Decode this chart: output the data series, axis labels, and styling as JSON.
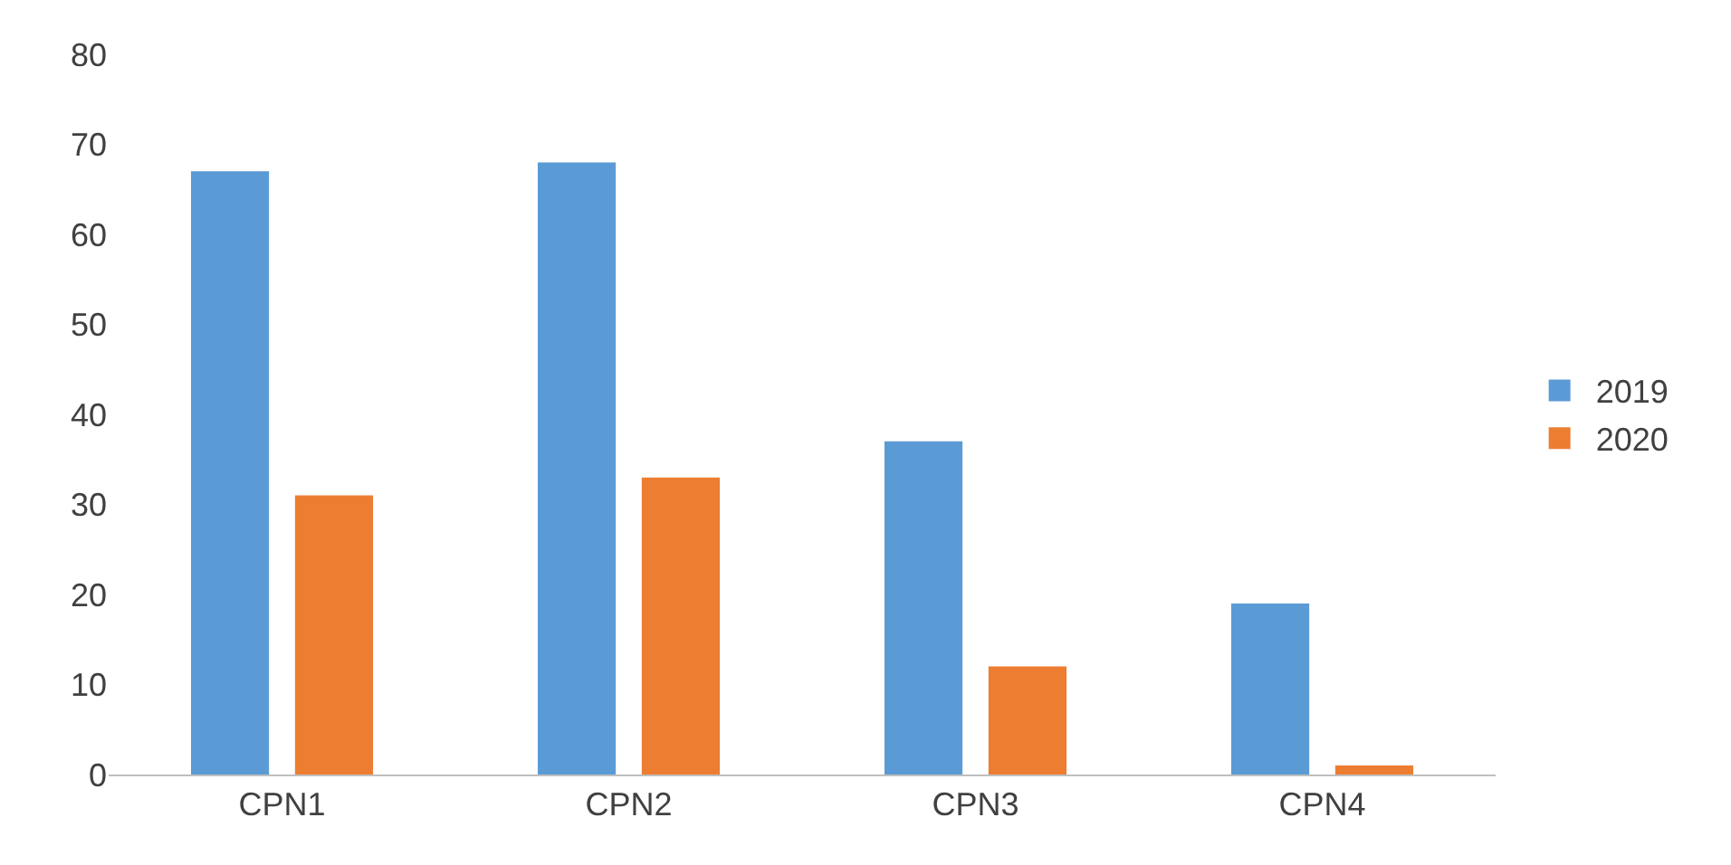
{
  "chart_data": {
    "type": "bar",
    "categories": [
      "CPN1",
      "CPN2",
      "CPN3",
      "CPN4"
    ],
    "series": [
      {
        "name": "2019",
        "color": "#5b9bd5",
        "values": [
          67,
          68,
          37,
          19
        ]
      },
      {
        "name": "2020",
        "color": "#ed7d31",
        "values": [
          31,
          33,
          12,
          1
        ]
      }
    ],
    "ylim": [
      0,
      80
    ],
    "yticks": [
      0,
      10,
      20,
      30,
      40,
      50,
      60,
      70,
      80
    ],
    "grid": false,
    "legend": "right"
  }
}
